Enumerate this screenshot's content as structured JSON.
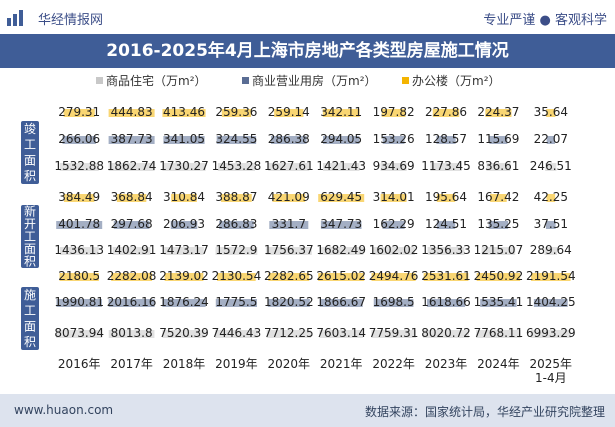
{
  "header": {
    "brand": "华经情报网",
    "tagline": "专业严谨 ● 客观科学"
  },
  "footer": {
    "site": "www.huaon.com",
    "source": "数据来源：国家统计局，华经产业研究院整理"
  },
  "chart_data": {
    "type": "bar",
    "title": "2016-2025年4月上海市房地产各类型房屋施工情况",
    "categories": [
      "2016年",
      "2017年",
      "2018年",
      "2019年",
      "2020年",
      "2021年",
      "2022年",
      "2023年",
      "2024年",
      "2025年 1-4月"
    ],
    "legend": {
      "placement": "top"
    },
    "colors": {
      "商品住宅（万m²）": "#c8c8c8",
      "商业营业用房（万m²）": "#5a6d94",
      "办公楼（万m²）": "#f4b400"
    },
    "panels": [
      {
        "label": "竣工面积",
        "series": [
          {
            "name": "办公楼（万m²）",
            "values": [
              279.31,
              444.83,
              413.46,
              259.36,
              259.14,
              342.11,
              197.82,
              227.86,
              224.37,
              35.64
            ]
          },
          {
            "name": "商业营业用房（万m²）",
            "values": [
              266.06,
              387.73,
              341.05,
              324.55,
              286.38,
              294.05,
              153.26,
              128.57,
              115.69,
              22.07
            ]
          },
          {
            "name": "商品住宅（万m²）",
            "values": [
              1532.88,
              1862.74,
              1730.27,
              1453.28,
              1627.61,
              1421.43,
              934.69,
              1173.45,
              836.61,
              246.51
            ]
          }
        ]
      },
      {
        "label": "新开工面积",
        "series": [
          {
            "name": "办公楼（万m²）",
            "values": [
              384.49,
              368.84,
              310.84,
              388.87,
              421.09,
              629.45,
              314.01,
              195.64,
              167.42,
              42.25
            ]
          },
          {
            "name": "商业营业用房（万m²）",
            "values": [
              401.78,
              297.68,
              206.93,
              286.83,
              331.7,
              347.73,
              162.29,
              124.51,
              135.25,
              37.51
            ]
          },
          {
            "name": "商品住宅（万m²）",
            "values": [
              1436.13,
              1402.91,
              1473.17,
              1572.9,
              1756.37,
              1682.49,
              1602.02,
              1356.33,
              1215.07,
              289.64
            ]
          }
        ]
      },
      {
        "label": "施工面积",
        "series": [
          {
            "name": "办公楼（万m²）",
            "values": [
              2180.5,
              2282.08,
              2139.02,
              2130.54,
              2282.65,
              2615.02,
              2494.76,
              2531.61,
              2450.92,
              2191.54
            ]
          },
          {
            "name": "商业营业用房（万m²）",
            "values": [
              1990.81,
              2016.16,
              1876.24,
              1775.5,
              1820.52,
              1866.67,
              1698.5,
              1618.66,
              1535.41,
              1404.25
            ]
          },
          {
            "name": "商品住宅（万m²）",
            "values": [
              8073.94,
              8013.8,
              7520.39,
              7446.43,
              7712.25,
              7603.14,
              7759.31,
              8020.72,
              7768.11,
              6993.29
            ]
          }
        ]
      }
    ]
  }
}
